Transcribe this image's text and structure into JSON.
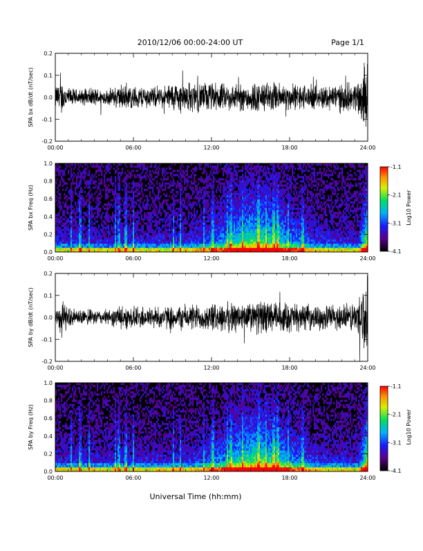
{
  "header": {
    "title": "2010/12/06  00:00-24:00 UT",
    "page": "Page 1/1"
  },
  "footer": {
    "xlabel": "Universal Time (hh:mm)"
  },
  "chart_data": [
    {
      "type": "line",
      "ylabel": "SPA bx dB/dt (nT/sec)",
      "xlim": [
        "00:00",
        "24:00"
      ],
      "xticks": [
        "00:00",
        "06:00",
        "12:00",
        "18:00",
        "24:00"
      ],
      "ylim": [
        -0.2,
        0.2
      ],
      "yticks": [
        "-0.2",
        "-0.1",
        "0.0",
        "0.1",
        "0.2"
      ],
      "envelope_hours": [
        0,
        0.5,
        1,
        2,
        3,
        4,
        5,
        6,
        7,
        8,
        9,
        10,
        11,
        12,
        13,
        14,
        15,
        16,
        17,
        18,
        19,
        20,
        21,
        22,
        23,
        23.5,
        24
      ],
      "envelope_amplitude": [
        0.06,
        0.09,
        0.05,
        0.04,
        0.05,
        0.04,
        0.07,
        0.06,
        0.06,
        0.05,
        0.08,
        0.08,
        0.08,
        0.08,
        0.07,
        0.07,
        0.08,
        0.08,
        0.08,
        0.07,
        0.07,
        0.06,
        0.07,
        0.08,
        0.07,
        0.15,
        0.2
      ]
    },
    {
      "type": "heatmap",
      "ylabel": "SPA bx Freq (Hz)",
      "xlim": [
        "00:00",
        "24:00"
      ],
      "xticks": [
        "00:00",
        "06:00",
        "12:00",
        "18:00",
        "24:00"
      ],
      "ylim": [
        0.0,
        1.0
      ],
      "yticks": [
        "0.0",
        "0.2",
        "0.4",
        "0.6",
        "0.8",
        "1.0"
      ],
      "colorbar": {
        "label": "Log10 Power",
        "ticks": [
          "-1.1",
          "-2.1",
          "-3.1",
          "-4.1"
        ],
        "range": [
          -4.1,
          -1.1
        ]
      }
    },
    {
      "type": "line",
      "ylabel": "SPA by dB/dt (nT/sec)",
      "xlim": [
        "00:00",
        "24:00"
      ],
      "xticks": [
        "00:00",
        "06:00",
        "12:00",
        "18:00",
        "24:00"
      ],
      "ylim": [
        -0.2,
        0.2
      ],
      "yticks": [
        "-0.2",
        "-0.1",
        "0.0",
        "0.1",
        "0.2"
      ],
      "envelope_hours": [
        0,
        0.5,
        1,
        2,
        3,
        4,
        5,
        6,
        7,
        8,
        9,
        10,
        11,
        12,
        13,
        14,
        15,
        16,
        17,
        18,
        19,
        20,
        21,
        22,
        23,
        23.5,
        24
      ],
      "envelope_amplitude": [
        0.06,
        0.1,
        0.05,
        0.04,
        0.04,
        0.04,
        0.06,
        0.06,
        0.06,
        0.06,
        0.06,
        0.07,
        0.07,
        0.07,
        0.08,
        0.08,
        0.08,
        0.09,
        0.08,
        0.08,
        0.07,
        0.06,
        0.07,
        0.07,
        0.08,
        0.15,
        0.22
      ]
    },
    {
      "type": "heatmap",
      "ylabel": "SPA by Freq (Hz)",
      "xlim": [
        "00:00",
        "24:00"
      ],
      "xticks": [
        "00:00",
        "06:00",
        "12:00",
        "18:00",
        "24:00"
      ],
      "ylim": [
        0.0,
        1.0
      ],
      "yticks": [
        "0.0",
        "0.2",
        "0.4",
        "0.6",
        "0.8",
        "1.0"
      ],
      "colorbar": {
        "label": "Log10 Power",
        "ticks": [
          "-1.1",
          "-2.1",
          "-3.1",
          "-4.1"
        ],
        "range": [
          -4.1,
          -1.1
        ]
      }
    }
  ]
}
